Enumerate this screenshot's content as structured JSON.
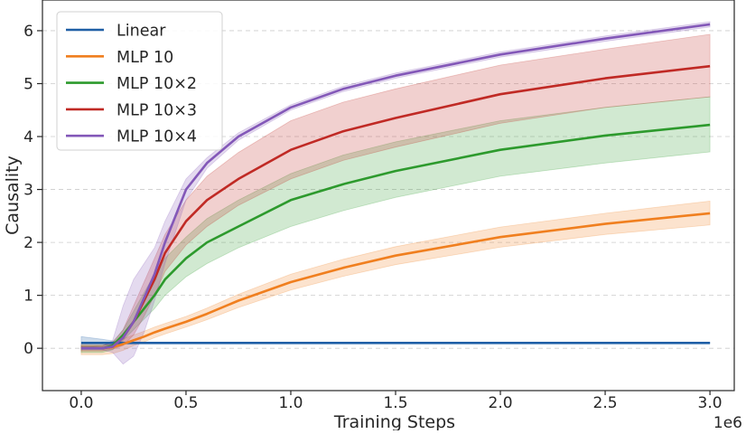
{
  "chart_data": {
    "type": "line",
    "title": "",
    "xlabel": "Training Steps",
    "ylabel": "Causality",
    "x_offset_label": "1e6",
    "xlim": [
      -0.185,
      3.116
    ],
    "ylim": [
      -0.8,
      6.58
    ],
    "x_ticks": [
      0.0,
      0.5,
      1.0,
      1.5,
      2.0,
      2.5,
      3.0
    ],
    "x_tick_labels": [
      "0.0",
      "0.5",
      "1.0",
      "1.5",
      "2.0",
      "2.5",
      "3.0"
    ],
    "y_ticks": [
      0,
      1,
      2,
      3,
      4,
      5,
      6
    ],
    "y_tick_labels": [
      "0",
      "1",
      "2",
      "3",
      "4",
      "5",
      "6"
    ],
    "grid": "horizontal dashed",
    "legend_position": "top-left",
    "x": [
      0,
      0.1,
      0.15,
      0.2,
      0.25,
      0.3,
      0.35,
      0.4,
      0.5,
      0.6,
      0.75,
      1.0,
      1.25,
      1.5,
      2.0,
      2.5,
      3.0
    ],
    "series": [
      {
        "name": "Linear",
        "color": "#1f5fa6",
        "values": [
          0.1,
          0.1,
          0.1,
          0.1,
          0.1,
          0.1,
          0.1,
          0.1,
          0.1,
          0.1,
          0.1,
          0.1,
          0.1,
          0.1,
          0.1,
          0.1,
          0.1
        ],
        "lower": [
          0.0,
          0.05,
          0.07,
          0.08,
          0.09,
          0.09,
          0.09,
          0.09,
          0.09,
          0.09,
          0.09,
          0.09,
          0.09,
          0.09,
          0.09,
          0.09,
          0.09
        ],
        "upper": [
          0.22,
          0.17,
          0.14,
          0.12,
          0.11,
          0.11,
          0.11,
          0.11,
          0.11,
          0.11,
          0.11,
          0.11,
          0.11,
          0.11,
          0.11,
          0.11,
          0.11
        ]
      },
      {
        "name": "MLP 10",
        "color": "#f07f1f",
        "values": [
          0.0,
          0.0,
          0.02,
          0.08,
          0.15,
          0.22,
          0.3,
          0.37,
          0.5,
          0.65,
          0.9,
          1.25,
          1.52,
          1.75,
          2.1,
          2.35,
          2.55
        ],
        "lower": [
          -0.12,
          -0.12,
          -0.1,
          -0.04,
          0.05,
          0.12,
          0.2,
          0.27,
          0.4,
          0.54,
          0.77,
          1.1,
          1.36,
          1.58,
          1.91,
          2.15,
          2.33
        ],
        "upper": [
          0.08,
          0.1,
          0.12,
          0.18,
          0.25,
          0.32,
          0.4,
          0.47,
          0.6,
          0.76,
          1.02,
          1.4,
          1.68,
          1.92,
          2.29,
          2.55,
          2.78
        ]
      },
      {
        "name": "MLP 10×2",
        "color": "#2d9a2d",
        "values": [
          0.0,
          0.0,
          0.05,
          0.25,
          0.5,
          0.75,
          1.0,
          1.3,
          1.7,
          2.0,
          2.3,
          2.8,
          3.1,
          3.35,
          3.75,
          4.02,
          4.22
        ],
        "lower": [
          -0.08,
          -0.08,
          -0.03,
          0.15,
          0.35,
          0.55,
          0.75,
          1.0,
          1.35,
          1.6,
          1.9,
          2.3,
          2.6,
          2.85,
          3.25,
          3.5,
          3.71
        ],
        "upper": [
          0.05,
          0.05,
          0.12,
          0.35,
          0.7,
          1.05,
          1.4,
          1.7,
          2.1,
          2.45,
          2.8,
          3.3,
          3.65,
          3.9,
          4.3,
          4.55,
          4.75
        ]
      },
      {
        "name": "MLP 10×3",
        "color": "#c02a25",
        "values": [
          0.0,
          0.0,
          0.03,
          0.2,
          0.5,
          0.9,
          1.3,
          1.8,
          2.4,
          2.8,
          3.2,
          3.75,
          4.1,
          4.35,
          4.8,
          5.1,
          5.33
        ],
        "lower": [
          -0.05,
          -0.05,
          -0.02,
          0.05,
          0.25,
          0.6,
          1.0,
          1.45,
          1.95,
          2.3,
          2.7,
          3.2,
          3.55,
          3.8,
          4.25,
          4.55,
          4.75
        ],
        "upper": [
          0.05,
          0.05,
          0.1,
          0.35,
          0.8,
          1.25,
          1.7,
          2.15,
          2.8,
          3.25,
          3.7,
          4.3,
          4.65,
          4.9,
          5.35,
          5.65,
          5.93
        ]
      },
      {
        "name": "MLP 10×4",
        "color": "#8358b8",
        "values": [
          0.0,
          0.0,
          0.03,
          0.2,
          0.5,
          0.95,
          1.4,
          2.0,
          3.0,
          3.5,
          4.0,
          4.55,
          4.9,
          5.15,
          5.55,
          5.85,
          6.12
        ],
        "lower": [
          -0.03,
          -0.03,
          -0.08,
          -0.3,
          -0.15,
          0.3,
          0.9,
          1.6,
          2.8,
          3.4,
          3.93,
          4.5,
          4.85,
          5.1,
          5.5,
          5.8,
          6.07
        ],
        "upper": [
          0.03,
          0.03,
          0.15,
          0.8,
          1.3,
          1.6,
          1.9,
          2.4,
          3.2,
          3.6,
          4.07,
          4.6,
          4.95,
          5.2,
          5.6,
          5.9,
          6.17
        ]
      }
    ]
  }
}
